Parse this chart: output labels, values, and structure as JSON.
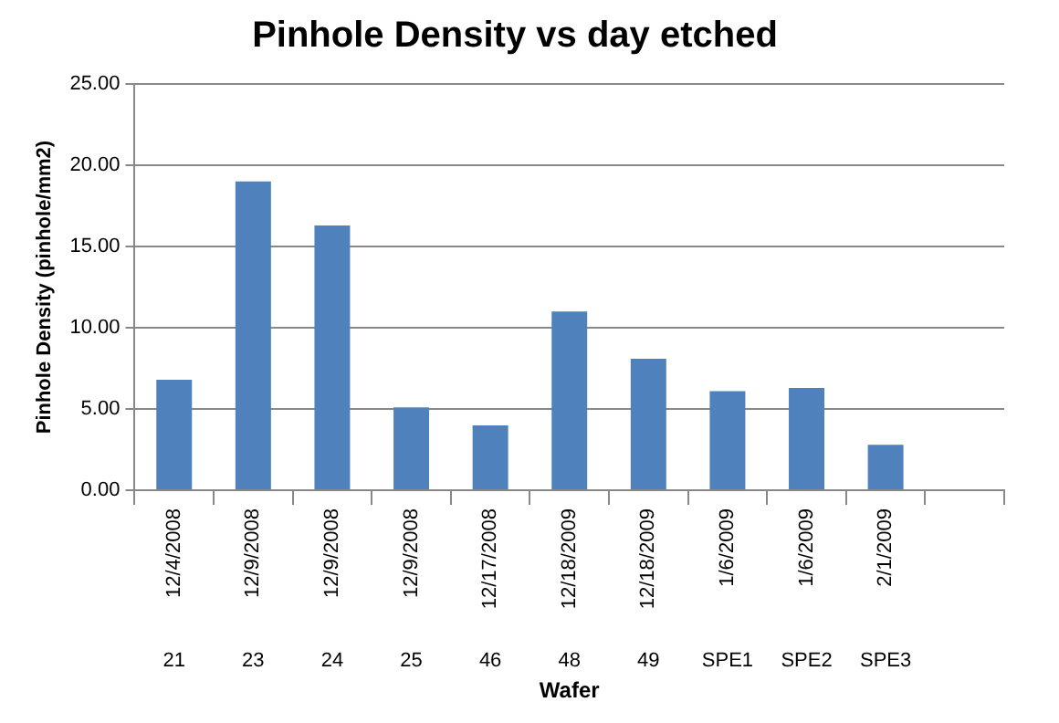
{
  "chart_data": {
    "type": "bar",
    "title": "Pinhole Density vs day etched",
    "xlabel": "Wafer",
    "ylabel": "Pinhole Density (pinhole/mm2)",
    "categories": [
      "12/4/2008",
      "12/9/2008",
      "12/9/2008",
      "12/9/2008",
      "12/17/2008",
      "12/18/2009",
      "12/18/2009",
      "1/6/2009",
      "1/6/2009",
      "2/1/2009",
      null
    ],
    "values": [
      6.8,
      19.0,
      16.3,
      5.1,
      4.0,
      11.0,
      8.1,
      6.1,
      6.3,
      2.8,
      null
    ],
    "color": "#4f81bd",
    "ylim": [
      0,
      25
    ],
    "yticks": [
      {
        "value": 0,
        "label": "0.00"
      },
      {
        "value": 5,
        "label": "5.00"
      },
      {
        "value": 10,
        "label": "10.00"
      },
      {
        "value": 15,
        "label": "15.00"
      },
      {
        "value": 20,
        "label": "20.00"
      },
      {
        "value": 25,
        "label": "25.00"
      }
    ],
    "grid": "y",
    "legend": false,
    "annotations": [
      "21",
      "23",
      "24",
      "25",
      "46",
      "48",
      "49",
      "SPE1",
      "SPE2",
      "SPE3"
    ]
  }
}
